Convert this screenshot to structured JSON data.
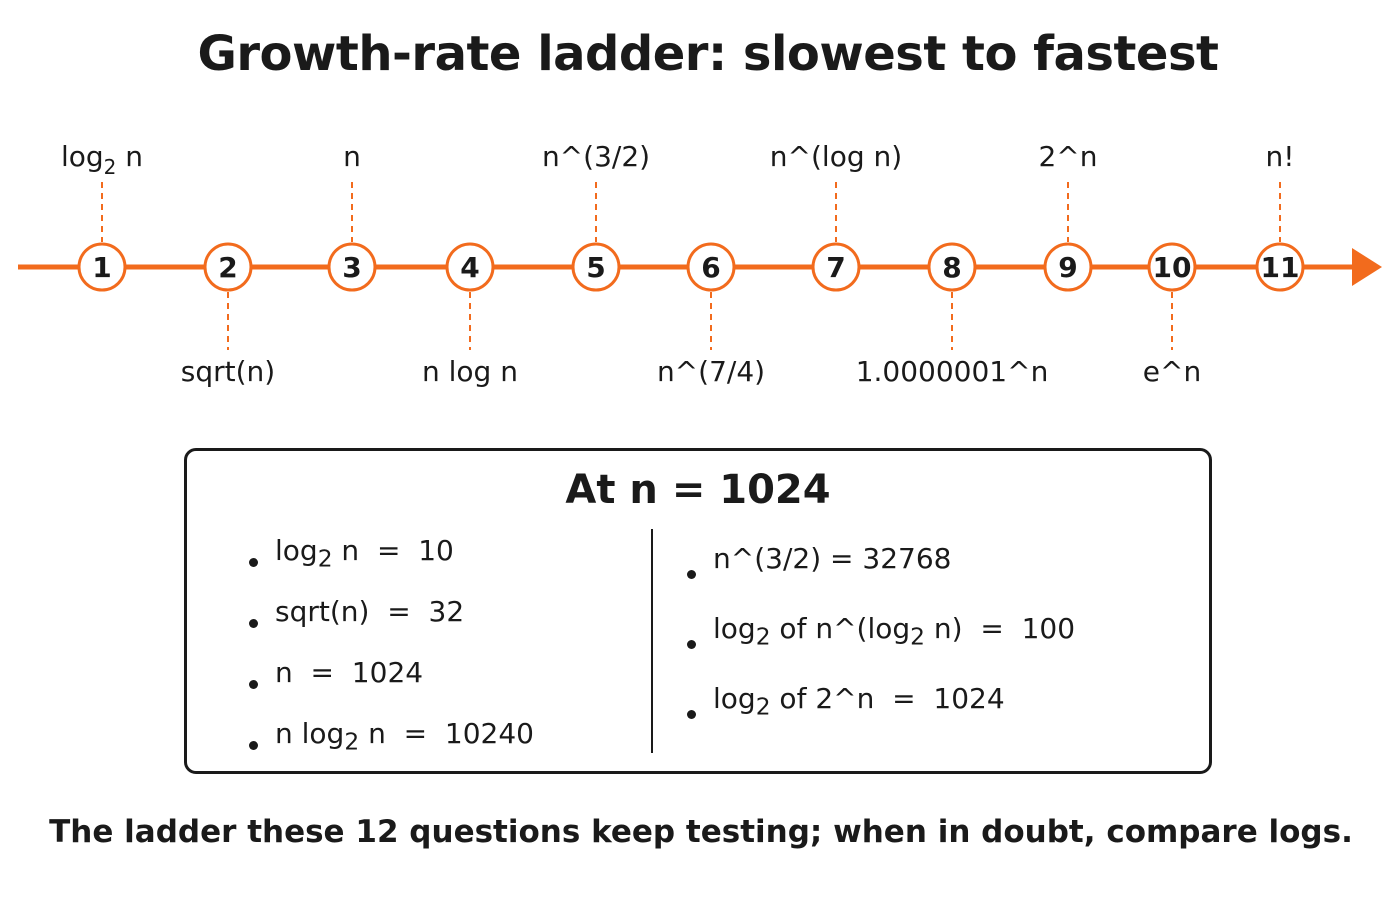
{
  "title": "Growth-rate ladder: slowest to fastest",
  "accent_color": "#f26b1d",
  "ladder": {
    "nodes": [
      {
        "num": "1",
        "label": "log",
        "label_sub": "2",
        "label_after": " n",
        "position": "top"
      },
      {
        "num": "2",
        "label": "sqrt(n)",
        "position": "bottom"
      },
      {
        "num": "3",
        "label": "n",
        "position": "top"
      },
      {
        "num": "4",
        "label": "n log n",
        "position": "bottom"
      },
      {
        "num": "5",
        "label": "n^(3/2)",
        "position": "top"
      },
      {
        "num": "6",
        "label": "n^(7/4)",
        "position": "bottom"
      },
      {
        "num": "7",
        "label": "n^(log n)",
        "position": "top"
      },
      {
        "num": "8",
        "label": "1.0000001^n",
        "position": "bottom"
      },
      {
        "num": "9",
        "label": "2^n",
        "position": "top"
      },
      {
        "num": "10",
        "label": "e^n",
        "position": "bottom"
      },
      {
        "num": "11",
        "label": "n!",
        "position": "top"
      }
    ]
  },
  "box": {
    "title": "At n = 1024",
    "left_items": [
      {
        "pre": "log",
        "sub": "2",
        "post": " n  =  10"
      },
      {
        "pre": "sqrt(n)  =  32",
        "sub": "",
        "post": ""
      },
      {
        "pre": "n  =  1024",
        "sub": "",
        "post": ""
      },
      {
        "pre": "n log",
        "sub": "2",
        "post": " n  =  10240"
      }
    ],
    "right_items": [
      {
        "pre": "n^(3/2) = 32768",
        "sub": "",
        "post": "",
        "sub2": "",
        "post2": ""
      },
      {
        "pre": "log",
        "sub": "2",
        "post": " of n^(log",
        "sub2": "2",
        "post2": " n)  =  100"
      },
      {
        "pre": "log",
        "sub": "2",
        "post": " of 2^n  =  1024",
        "sub2": "",
        "post2": ""
      }
    ]
  },
  "caption": "The ladder these 12 questions keep testing; when in doubt, compare logs."
}
